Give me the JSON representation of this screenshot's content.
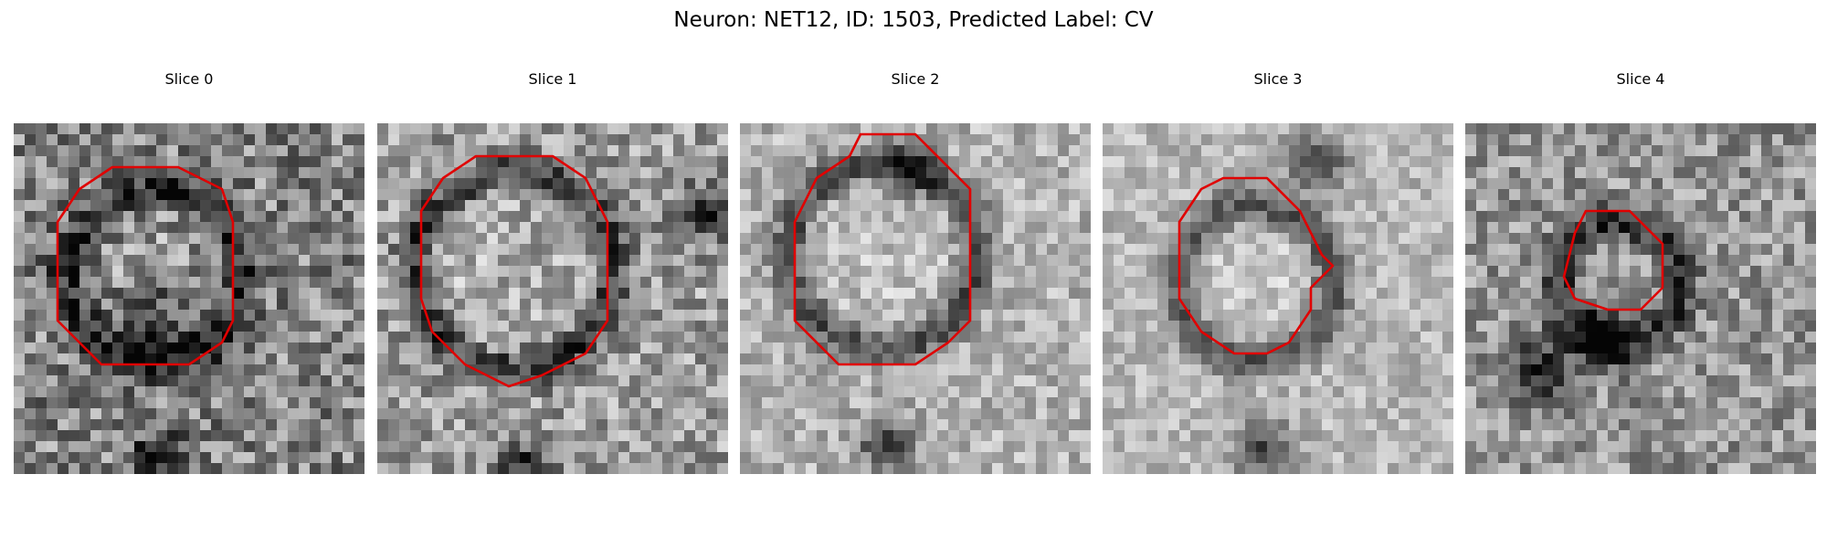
{
  "figure": {
    "title": "Neuron: NET12, ID: 1503, Predicted Label: CV"
  },
  "colors": {
    "contour": "#e00000",
    "background": "#ffffff"
  },
  "slices": [
    {
      "title": "Slice 0",
      "seed": 11,
      "base": 0.52,
      "spread": 0.55,
      "blob_sign": -1
    },
    {
      "title": "Slice 1",
      "seed": 29,
      "base": 0.62,
      "spread": 0.48,
      "blob_sign": -1
    },
    {
      "title": "Slice 2",
      "seed": 47,
      "base": 0.7,
      "spread": 0.35,
      "blob_sign": -1
    },
    {
      "title": "Slice 3",
      "seed": 73,
      "base": 0.72,
      "spread": 0.3,
      "blob_sign": -1
    },
    {
      "title": "Slice 4",
      "seed": 97,
      "base": 0.58,
      "spread": 0.45,
      "blob_sign": -1
    }
  ]
}
